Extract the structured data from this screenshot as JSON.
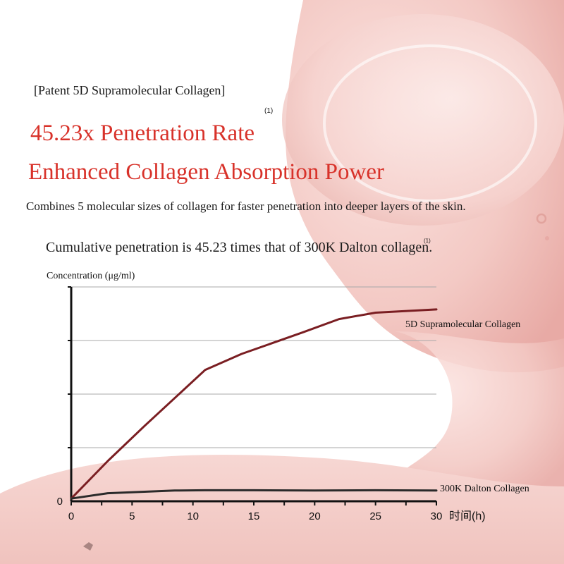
{
  "header": {
    "patent_label": "[Patent 5D Supramolecular Collagen]",
    "footnote_mark": "(1)",
    "headline_line1": "45.23x Penetration Rate",
    "headline_line2": "Enhanced Collagen Absorption Power",
    "description": "Combines 5 molecular sizes of collagen for faster penetration into deeper layers of the skin.",
    "cumulative_note": "Cumulative penetration is 45.23 times that of 300K Dalton collagen.",
    "cumulative_footnote_mark": "(1)"
  },
  "colors": {
    "headline": "#d8322a",
    "series_5d": "#7a1e22",
    "series_300k": "#2a2a2a",
    "axis": "#111111",
    "grid": "#a8a8a8",
    "background_pink": "#f2c7c2"
  },
  "chart_data": {
    "type": "line",
    "ylabel": "Concentration (μg/ml)",
    "xlabel": "时间(h)",
    "xlim": [
      0,
      30
    ],
    "ylim": [
      0,
      4
    ],
    "x_ticks": [
      0,
      5,
      10,
      15,
      20,
      25,
      30
    ],
    "y_tick_labels": [
      {
        "value": 0,
        "label": "0"
      }
    ],
    "grid": true,
    "series": [
      {
        "name": "5D Supramolecular Collagen",
        "x": [
          0,
          3,
          6,
          11,
          14,
          19,
          22,
          25,
          30
        ],
        "y": [
          0.05,
          0.75,
          1.4,
          2.45,
          2.75,
          3.15,
          3.4,
          3.52,
          3.58
        ]
      },
      {
        "name": "300K Dalton Collagen",
        "x": [
          0,
          3,
          8.5,
          11,
          15,
          20,
          25,
          30
        ],
        "y": [
          0.05,
          0.15,
          0.2,
          0.205,
          0.205,
          0.2,
          0.205,
          0.2
        ]
      }
    ]
  }
}
